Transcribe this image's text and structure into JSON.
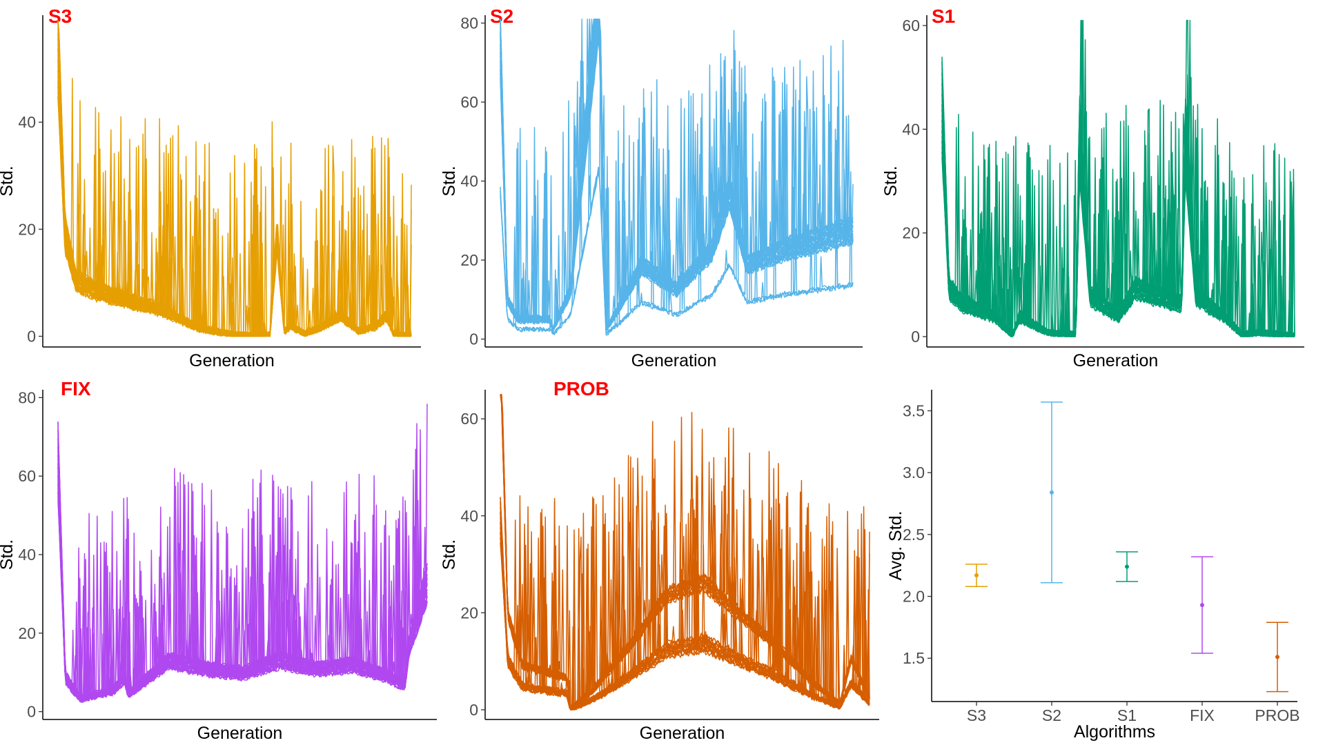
{
  "tag_color": "#ff0000",
  "chart_data": [
    {
      "type": "line",
      "tag": "S3",
      "color": "#e69f00",
      "xlabel": "Generation",
      "ylabel": "Std.",
      "yticks": [
        0,
        20,
        40
      ],
      "ylim": [
        -2,
        60
      ],
      "x_ticks_shown": false,
      "series_count": 30,
      "profile": {
        "x": [
          0,
          0.02,
          0.05,
          0.1,
          0.2,
          0.3,
          0.4,
          0.5,
          0.55,
          0.6,
          0.62,
          0.64,
          0.66,
          0.7,
          0.75,
          0.8,
          0.85,
          0.9,
          0.93,
          0.95,
          1.0
        ],
        "y": [
          56,
          20,
          11,
          9,
          7,
          5,
          1.5,
          0.3,
          0.2,
          0.3,
          20,
          1,
          2,
          0.5,
          2,
          4,
          1,
          2,
          4,
          0.5,
          0
        ]
      }
    },
    {
      "type": "line",
      "tag": "S2",
      "color": "#56b4e9",
      "xlabel": "Generation",
      "ylabel": "Std.",
      "yticks": [
        0,
        20,
        40,
        60,
        80
      ],
      "ylim": [
        -2,
        82
      ],
      "x_ticks_shown": false,
      "series_count": 30,
      "profile": {
        "x": [
          0,
          0.02,
          0.05,
          0.14,
          0.15,
          0.2,
          0.28,
          0.3,
          0.35,
          0.4,
          0.5,
          0.6,
          0.65,
          0.7,
          0.8,
          0.9,
          1.0
        ],
        "y": [
          60,
          8,
          4,
          4,
          2,
          10,
          70,
          2,
          8,
          15,
          10,
          18,
          30,
          15,
          18,
          20,
          22
        ]
      }
    },
    {
      "type": "line",
      "tag": "S1",
      "color": "#009e73",
      "xlabel": "Generation",
      "ylabel": "Std.",
      "yticks": [
        0,
        20,
        40,
        60
      ],
      "ylim": [
        -2,
        62
      ],
      "x_ticks_shown": false,
      "series_count": 30,
      "profile": {
        "x": [
          0,
          0.02,
          0.06,
          0.15,
          0.2,
          0.22,
          0.3,
          0.38,
          0.39,
          0.42,
          0.5,
          0.55,
          0.68,
          0.69,
          0.72,
          0.8,
          0.85,
          0.9,
          1.0
        ],
        "y": [
          57,
          12,
          8,
          5,
          0.3,
          5,
          1,
          0.5,
          50,
          10,
          5,
          12,
          8,
          50,
          10,
          5,
          0.5,
          1,
          0.2
        ]
      }
    },
    {
      "type": "line",
      "tag": "FIX",
      "color": "#b048f0",
      "xlabel": "Generation",
      "ylabel": "Std.",
      "yticks": [
        0,
        20,
        40,
        60,
        80
      ],
      "ylim": [
        -2,
        82
      ],
      "x_ticks_shown": false,
      "series_count": 30,
      "profile": {
        "x": [
          0,
          0.02,
          0.06,
          0.15,
          0.18,
          0.19,
          0.3,
          0.4,
          0.5,
          0.6,
          0.7,
          0.8,
          0.9,
          0.94,
          0.95,
          1.0
        ],
        "y": [
          59,
          8,
          3,
          5,
          8,
          4,
          12,
          10,
          9,
          12,
          10,
          11,
          8,
          6,
          15,
          30
        ]
      }
    },
    {
      "type": "line",
      "tag": "PROB",
      "color": "#d55e00",
      "xlabel": "Generation",
      "ylabel": "Std.",
      "yticks": [
        0,
        20,
        40,
        60
      ],
      "ylim": [
        -2,
        66
      ],
      "x_ticks_shown": false,
      "series_count": 30,
      "profile": {
        "x": [
          0,
          0.02,
          0.06,
          0.18,
          0.19,
          0.25,
          0.35,
          0.45,
          0.55,
          0.65,
          0.75,
          0.85,
          0.92,
          0.95,
          1.0
        ],
        "y": [
          58,
          15,
          7,
          5,
          0.2,
          3,
          10,
          18,
          20,
          15,
          10,
          4,
          1,
          8,
          2
        ]
      }
    },
    {
      "type": "errorbar",
      "xlabel": "Algorithms",
      "ylabel": "Avg. Std.",
      "categories": [
        "S3",
        "S2",
        "S1",
        "FIX",
        "PROB"
      ],
      "colors": [
        "#e69f00",
        "#56b4e9",
        "#009e73",
        "#b048f0",
        "#d55e00"
      ],
      "mean": [
        2.17,
        2.84,
        2.24,
        1.93,
        1.51
      ],
      "lower": [
        2.08,
        2.11,
        2.12,
        1.54,
        1.23
      ],
      "upper": [
        2.26,
        3.57,
        2.36,
        2.32,
        1.79
      ],
      "yticks": [
        1.5,
        2.0,
        2.5,
        3.0,
        3.5
      ],
      "ytick_labels": [
        "1.5",
        "2.0",
        "2.5",
        "3.0",
        "3.5"
      ],
      "ylim": [
        1.15,
        3.67
      ]
    }
  ]
}
